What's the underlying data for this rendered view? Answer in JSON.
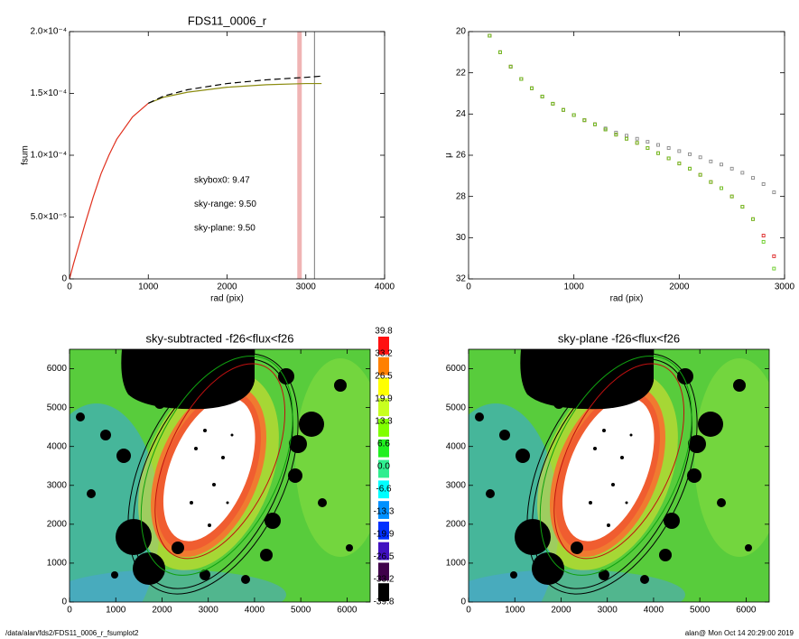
{
  "chart_data": [
    {
      "type": "line",
      "title": "FDS11_0006_r",
      "xlabel": "rad (pix)",
      "ylabel": "fsum",
      "xlim": [
        0,
        4000
      ],
      "xticks": [
        0,
        1000,
        2000,
        3000,
        4000
      ],
      "ylim": [
        0,
        0.0002
      ],
      "yticks": [
        0,
        {
          "value": 5e-05,
          "label": "5.0×10⁻⁵"
        },
        {
          "value": 0.0001,
          "label": "1.0×10⁻⁴"
        },
        {
          "value": 0.00015,
          "label": "1.5×10⁻⁴"
        },
        {
          "value": 0.0002,
          "label": "2.0×10⁻⁴"
        }
      ],
      "x": [
        0,
        50,
        100,
        200,
        300,
        400,
        500,
        600,
        800,
        1000,
        1200,
        1500,
        2000,
        2500,
        3000,
        3200
      ],
      "series": [
        {
          "color": "#e0301e",
          "values": [
            0,
            1.2e-05,
            2.3e-05,
            4.5e-05,
            6.6e-05,
            8.5e-05,
            0.0001,
            0.000113,
            0.000131,
            0.000142,
            null,
            null,
            null,
            null,
            null,
            null
          ]
        },
        {
          "color": "#8c8c10",
          "values": [
            null,
            null,
            null,
            null,
            null,
            null,
            null,
            null,
            null,
            0.000142,
            0.000147,
            0.000151,
            0.000155,
            0.000157,
            0.000158,
            0.000158
          ]
        },
        {
          "color": "#000000",
          "dash": true,
          "values": [
            null,
            null,
            null,
            null,
            null,
            null,
            null,
            null,
            null,
            0.000142,
            0.000148,
            0.000153,
            0.000158,
            0.000161,
            0.000163,
            0.000164
          ]
        }
      ],
      "vlines": [
        {
          "x": 2920,
          "color": "#f0b4b4"
        },
        {
          "x": 3110,
          "color": "#777777"
        }
      ],
      "annotations": [
        {
          "text": "skybox0:  9.47",
          "color": "#000000"
        },
        {
          "text": "sky-range:  9.50",
          "color": "#e02020"
        },
        {
          "text": "sky-plane:  9.50",
          "color": "#30dd30"
        }
      ]
    },
    {
      "type": "scatter",
      "xlabel": "rad (pix)",
      "ylabel": "μ",
      "xlim": [
        0,
        3000
      ],
      "xticks": [
        0,
        1000,
        2000,
        3000
      ],
      "ylim": [
        32,
        20
      ],
      "yticks": [
        20,
        22,
        24,
        26,
        28,
        30,
        32
      ],
      "x": [
        200,
        300,
        400,
        500,
        600,
        700,
        800,
        900,
        1000,
        1100,
        1200,
        1300,
        1400,
        1500,
        1600,
        1700,
        1800,
        1900,
        2000,
        2100,
        2200,
        2300,
        2400,
        2500,
        2600,
        2700,
        2800,
        2900
      ],
      "series": [
        {
          "color": "#888888",
          "values": [
            20.2,
            21.0,
            21.7,
            22.3,
            22.75,
            23.15,
            23.5,
            23.8,
            24.05,
            24.3,
            24.5,
            24.7,
            24.9,
            25.05,
            25.2,
            25.35,
            25.5,
            25.65,
            25.8,
            25.95,
            26.1,
            26.3,
            26.45,
            26.65,
            26.85,
            27.1,
            27.4,
            27.8
          ]
        },
        {
          "color": "#dd2222",
          "values": [
            20.2,
            21.0,
            21.7,
            22.3,
            22.75,
            23.15,
            23.5,
            23.8,
            24.05,
            24.3,
            24.5,
            24.75,
            25.0,
            25.2,
            25.4,
            25.65,
            25.9,
            26.15,
            26.4,
            26.65,
            26.95,
            27.3,
            27.6,
            28.0,
            28.5,
            29.1,
            29.9,
            30.9
          ]
        },
        {
          "color": "#66cc22",
          "values": [
            20.2,
            21.0,
            21.7,
            22.3,
            22.75,
            23.15,
            23.5,
            23.8,
            24.05,
            24.3,
            24.5,
            24.75,
            25.0,
            25.2,
            25.4,
            25.65,
            25.9,
            26.15,
            26.4,
            26.65,
            26.95,
            27.3,
            27.6,
            28.0,
            28.5,
            29.1,
            30.2,
            31.5
          ]
        }
      ]
    },
    {
      "type": "image",
      "title": "sky-subtracted -f26<flux<f26",
      "xlim": [
        0,
        6500
      ],
      "xticks": [
        0,
        1000,
        2000,
        3000,
        4000,
        5000,
        6000
      ],
      "ylim": [
        0,
        6500
      ],
      "yticks": [
        0,
        1000,
        2000,
        3000,
        4000,
        5000,
        6000
      ]
    },
    {
      "type": "colorbar",
      "colors": [
        "#ff1010",
        "#ff8000",
        "#ffff00",
        "#c8ff20",
        "#80ff00",
        "#20f020",
        "#30ee90",
        "#00ffff",
        "#0090ff",
        "#0030ff",
        "#4010c0",
        "#40004a",
        "#000000"
      ],
      "ticks": [
        39.8,
        33.2,
        26.5,
        19.9,
        13.3,
        6.6,
        {
          "value": 0,
          "label": "0.0"
        },
        -6.6,
        -13.3,
        -19.9,
        -26.5,
        -33.2,
        -39.8
      ]
    },
    {
      "type": "image",
      "title": "sky-plane -f26<flux<f26",
      "xlim": [
        0,
        6500
      ],
      "xticks": [
        0,
        1000,
        2000,
        3000,
        4000,
        5000,
        6000
      ],
      "ylim": [
        0,
        6500
      ],
      "yticks": [
        0,
        1000,
        2000,
        3000,
        4000,
        5000,
        6000
      ]
    }
  ],
  "footer": {
    "left": "/data/alan/fds2/FDS11_0006_r_fsumplot2",
    "right": "alan@  Mon Oct 14 20:29:00 2019"
  }
}
